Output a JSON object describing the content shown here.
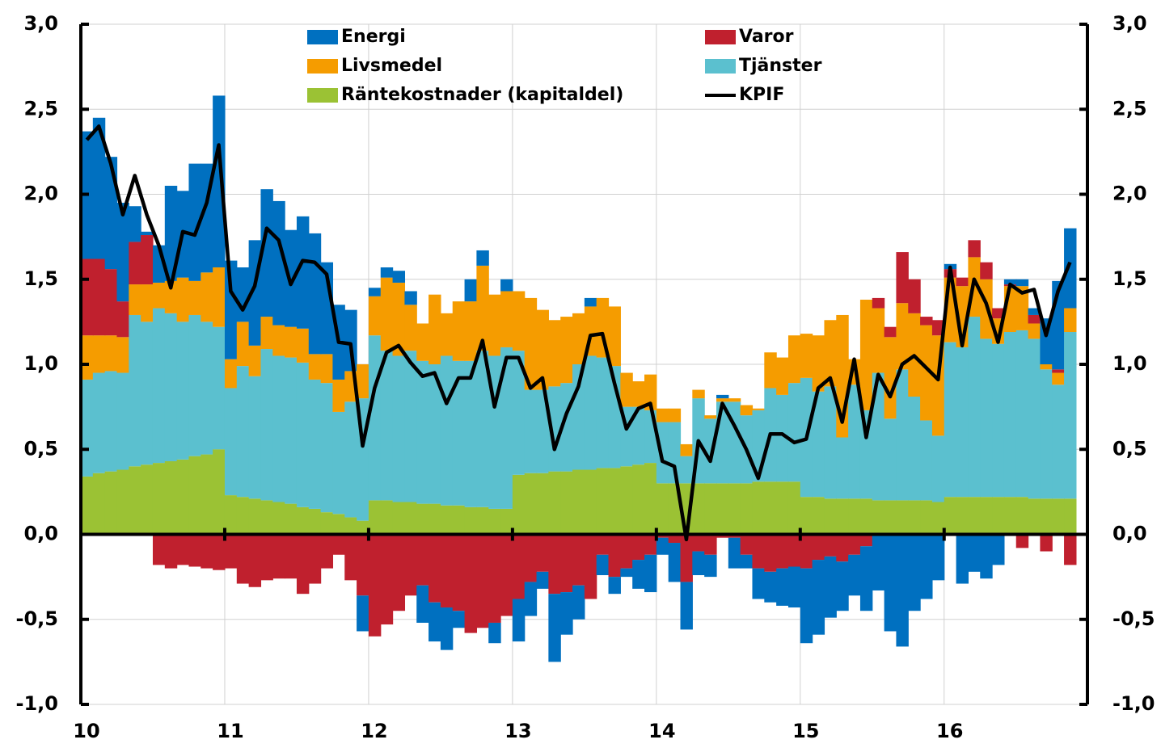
{
  "chart_data": {
    "type": "bar",
    "stacked": true,
    "categories": [
      "10",
      null,
      null,
      null,
      null,
      null,
      null,
      null,
      null,
      null,
      null,
      null,
      "11",
      null,
      null,
      null,
      null,
      null,
      null,
      null,
      null,
      null,
      null,
      null,
      "12",
      null,
      null,
      null,
      null,
      null,
      null,
      null,
      null,
      null,
      null,
      null,
      "13",
      null,
      null,
      null,
      null,
      null,
      null,
      null,
      null,
      null,
      null,
      null,
      "14",
      null,
      null,
      null,
      null,
      null,
      null,
      null,
      null,
      null,
      null,
      null,
      "15",
      null,
      null,
      null,
      null,
      null,
      null,
      null,
      null,
      null,
      null,
      null,
      "16",
      null,
      null,
      null,
      null,
      null,
      null,
      null,
      null,
      null,
      null
    ],
    "series": [
      {
        "name": "Energi",
        "color": "#0070c0",
        "values": [
          0.75,
          0.83,
          0.66,
          0.58,
          0.21,
          0.02,
          0.22,
          0.56,
          0.51,
          0.69,
          0.64,
          1.01,
          0.58,
          0.32,
          0.62,
          0.75,
          0.73,
          0.57,
          0.66,
          0.71,
          0.54,
          0.44,
          0.36,
          -0.21,
          0.05,
          0.06,
          0.07,
          0.08,
          -0.22,
          -0.23,
          -0.25,
          -0.1,
          0.13,
          0.09,
          -0.12,
          0.07,
          -0.25,
          -0.2,
          -0.1,
          -0.4,
          -0.25,
          -0.2,
          0.05,
          -0.12,
          -0.1,
          -0.05,
          -0.17,
          -0.22,
          -0.1,
          -0.23,
          -0.28,
          -0.14,
          -0.13,
          0.02,
          -0.18,
          -0.08,
          -0.18,
          -0.18,
          -0.22,
          -0.24,
          -0.44,
          -0.44,
          -0.36,
          -0.29,
          -0.24,
          -0.38,
          -0.33,
          -0.57,
          -0.66,
          -0.45,
          -0.38,
          -0.27,
          0.03,
          -0.29,
          -0.22,
          -0.26,
          -0.18,
          0.03,
          0.04,
          0.04,
          0.27,
          0.52,
          0.47
        ]
      },
      {
        "name": "Varor",
        "color": "#c0202e",
        "values": [
          0.45,
          0.45,
          0.39,
          0.21,
          0.25,
          0.29,
          -0.18,
          -0.2,
          -0.18,
          -0.19,
          -0.2,
          -0.21,
          -0.2,
          -0.29,
          -0.31,
          -0.27,
          -0.26,
          -0.26,
          -0.35,
          -0.29,
          -0.2,
          -0.12,
          -0.27,
          -0.36,
          -0.6,
          -0.53,
          -0.45,
          -0.36,
          -0.3,
          -0.4,
          -0.43,
          -0.45,
          -0.58,
          -0.55,
          -0.52,
          -0.48,
          -0.38,
          -0.28,
          -0.22,
          -0.35,
          -0.34,
          -0.3,
          -0.38,
          -0.12,
          -0.25,
          -0.2,
          -0.15,
          -0.12,
          -0.02,
          -0.05,
          -0.28,
          -0.1,
          -0.12,
          -0.02,
          -0.02,
          -0.12,
          -0.2,
          -0.22,
          -0.2,
          -0.19,
          -0.2,
          -0.15,
          -0.13,
          -0.16,
          -0.12,
          -0.07,
          0.06,
          0.06,
          0.3,
          0.2,
          0.05,
          0.09,
          0.05,
          0.05,
          0.1,
          0.1,
          0.06,
          0.01,
          -0.08,
          0.05,
          -0.1,
          0.02,
          -0.18
        ]
      },
      {
        "name": "Livsmedel",
        "color": "#f59c00",
        "values": [
          0.26,
          0.22,
          0.21,
          0.21,
          0.18,
          0.22,
          0.15,
          0.19,
          0.26,
          0.2,
          0.29,
          0.35,
          0.17,
          0.26,
          0.18,
          0.19,
          0.18,
          0.18,
          0.2,
          0.15,
          0.17,
          0.19,
          0.18,
          0.2,
          0.23,
          0.43,
          0.43,
          0.27,
          0.22,
          0.41,
          0.25,
          0.35,
          0.35,
          0.5,
          0.36,
          0.33,
          0.35,
          0.54,
          0.47,
          0.39,
          0.39,
          0.3,
          0.29,
          0.35,
          0.35,
          0.2,
          0.15,
          0.21,
          0.08,
          0.08,
          0.07,
          0.05,
          0.02,
          0.02,
          0.02,
          0.06,
          0.01,
          0.21,
          0.22,
          0.28,
          0.26,
          0.33,
          0.39,
          0.72,
          0.15,
          0.65,
          0.38,
          0.48,
          0.39,
          0.49,
          0.56,
          0.59,
          0.38,
          0.36,
          0.35,
          0.35,
          0.15,
          0.27,
          0.26,
          0.09,
          0.03,
          0.07,
          0.14
        ]
      },
      {
        "name": "Tjänster",
        "color": "#5bc0cf",
        "values": [
          0.57,
          0.59,
          0.59,
          0.57,
          0.89,
          0.84,
          0.91,
          0.87,
          0.81,
          0.83,
          0.78,
          0.72,
          0.63,
          0.77,
          0.72,
          0.89,
          0.86,
          0.86,
          0.85,
          0.76,
          0.76,
          0.6,
          0.68,
          0.72,
          0.97,
          0.88,
          0.86,
          0.89,
          0.84,
          0.82,
          0.88,
          0.85,
          0.86,
          0.92,
          0.9,
          0.95,
          0.73,
          0.49,
          0.49,
          0.5,
          0.52,
          0.62,
          0.67,
          0.65,
          0.6,
          0.35,
          0.34,
          0.31,
          0.36,
          0.36,
          0.16,
          0.5,
          0.38,
          0.48,
          0.48,
          0.4,
          0.42,
          0.55,
          0.51,
          0.58,
          0.7,
          0.62,
          0.66,
          0.36,
          0.67,
          0.52,
          0.75,
          0.48,
          0.77,
          0.61,
          0.47,
          0.39,
          0.91,
          0.88,
          1.06,
          0.93,
          0.9,
          0.97,
          0.98,
          0.94,
          0.76,
          0.67,
          0.98
        ]
      },
      {
        "name": "Räntekostnader (kapitaldel)",
        "color": "#9bc234",
        "values": [
          0.34,
          0.36,
          0.37,
          0.38,
          0.4,
          0.41,
          0.42,
          0.43,
          0.44,
          0.46,
          0.47,
          0.5,
          0.23,
          0.22,
          0.21,
          0.2,
          0.19,
          0.18,
          0.16,
          0.15,
          0.13,
          0.12,
          0.1,
          0.08,
          0.2,
          0.2,
          0.19,
          0.19,
          0.18,
          0.18,
          0.17,
          0.17,
          0.16,
          0.16,
          0.15,
          0.15,
          0.35,
          0.36,
          0.36,
          0.37,
          0.37,
          0.38,
          0.38,
          0.39,
          0.39,
          0.4,
          0.41,
          0.42,
          0.3,
          0.3,
          0.3,
          0.3,
          0.3,
          0.3,
          0.3,
          0.3,
          0.31,
          0.31,
          0.31,
          0.31,
          0.22,
          0.22,
          0.21,
          0.21,
          0.21,
          0.21,
          0.2,
          0.2,
          0.2,
          0.2,
          0.2,
          0.19,
          0.22,
          0.22,
          0.22,
          0.22,
          0.22,
          0.22,
          0.22,
          0.21,
          0.21,
          0.21,
          0.21
        ]
      },
      {
        "name": "KPIF",
        "color": "#000000",
        "type": "line",
        "values": [
          2.32,
          2.4,
          2.18,
          1.88,
          2.11,
          1.88,
          1.7,
          1.45,
          1.78,
          1.76,
          1.95,
          2.29,
          1.43,
          1.32,
          1.46,
          1.8,
          1.73,
          1.47,
          1.61,
          1.6,
          1.53,
          1.13,
          1.12,
          0.52,
          0.86,
          1.07,
          1.11,
          1.01,
          0.93,
          0.95,
          0.77,
          0.92,
          0.92,
          1.14,
          0.75,
          1.04,
          1.04,
          0.86,
          0.92,
          0.5,
          0.71,
          0.87,
          1.17,
          1.18,
          0.89,
          0.62,
          0.74,
          0.77,
          0.43,
          0.4,
          -0.03,
          0.55,
          0.43,
          0.77,
          0.64,
          0.5,
          0.33,
          0.59,
          0.59,
          0.54,
          0.56,
          0.86,
          0.92,
          0.66,
          1.03,
          0.57,
          0.94,
          0.81,
          1.0,
          1.05,
          0.98,
          0.91,
          1.57,
          1.11,
          1.5,
          1.36,
          1.13,
          1.47,
          1.42,
          1.44,
          1.17,
          1.43,
          1.6
        ]
      }
    ],
    "ylim": [
      -1.0,
      3.0
    ],
    "yticks": [
      {
        "value": -1.0,
        "label": "-1,0"
      },
      {
        "value": -0.5,
        "label": "-0,5"
      },
      {
        "value": 0.0,
        "label": "0,0"
      },
      {
        "value": 0.5,
        "label": "0,5"
      },
      {
        "value": 1.0,
        "label": "1,0"
      },
      {
        "value": 1.5,
        "label": "1,5"
      },
      {
        "value": 2.0,
        "label": "2,0"
      },
      {
        "value": 2.5,
        "label": "2,5"
      },
      {
        "value": 3.0,
        "label": "3,0"
      }
    ],
    "y2lim": [
      -1.0,
      3.0
    ],
    "y2ticks": [
      {
        "value": -1.0,
        "label": "-1,0"
      },
      {
        "value": -0.5,
        "label": "-0,5"
      },
      {
        "value": 0.0,
        "label": "0,0"
      },
      {
        "value": 0.5,
        "label": "0,5"
      },
      {
        "value": 1.0,
        "label": "1,0"
      },
      {
        "value": 1.5,
        "label": "1,5"
      },
      {
        "value": 2.0,
        "label": "2,0"
      },
      {
        "value": 2.5,
        "label": "2,5"
      },
      {
        "value": 3.0,
        "label": "3,0"
      }
    ],
    "grid": true
  }
}
